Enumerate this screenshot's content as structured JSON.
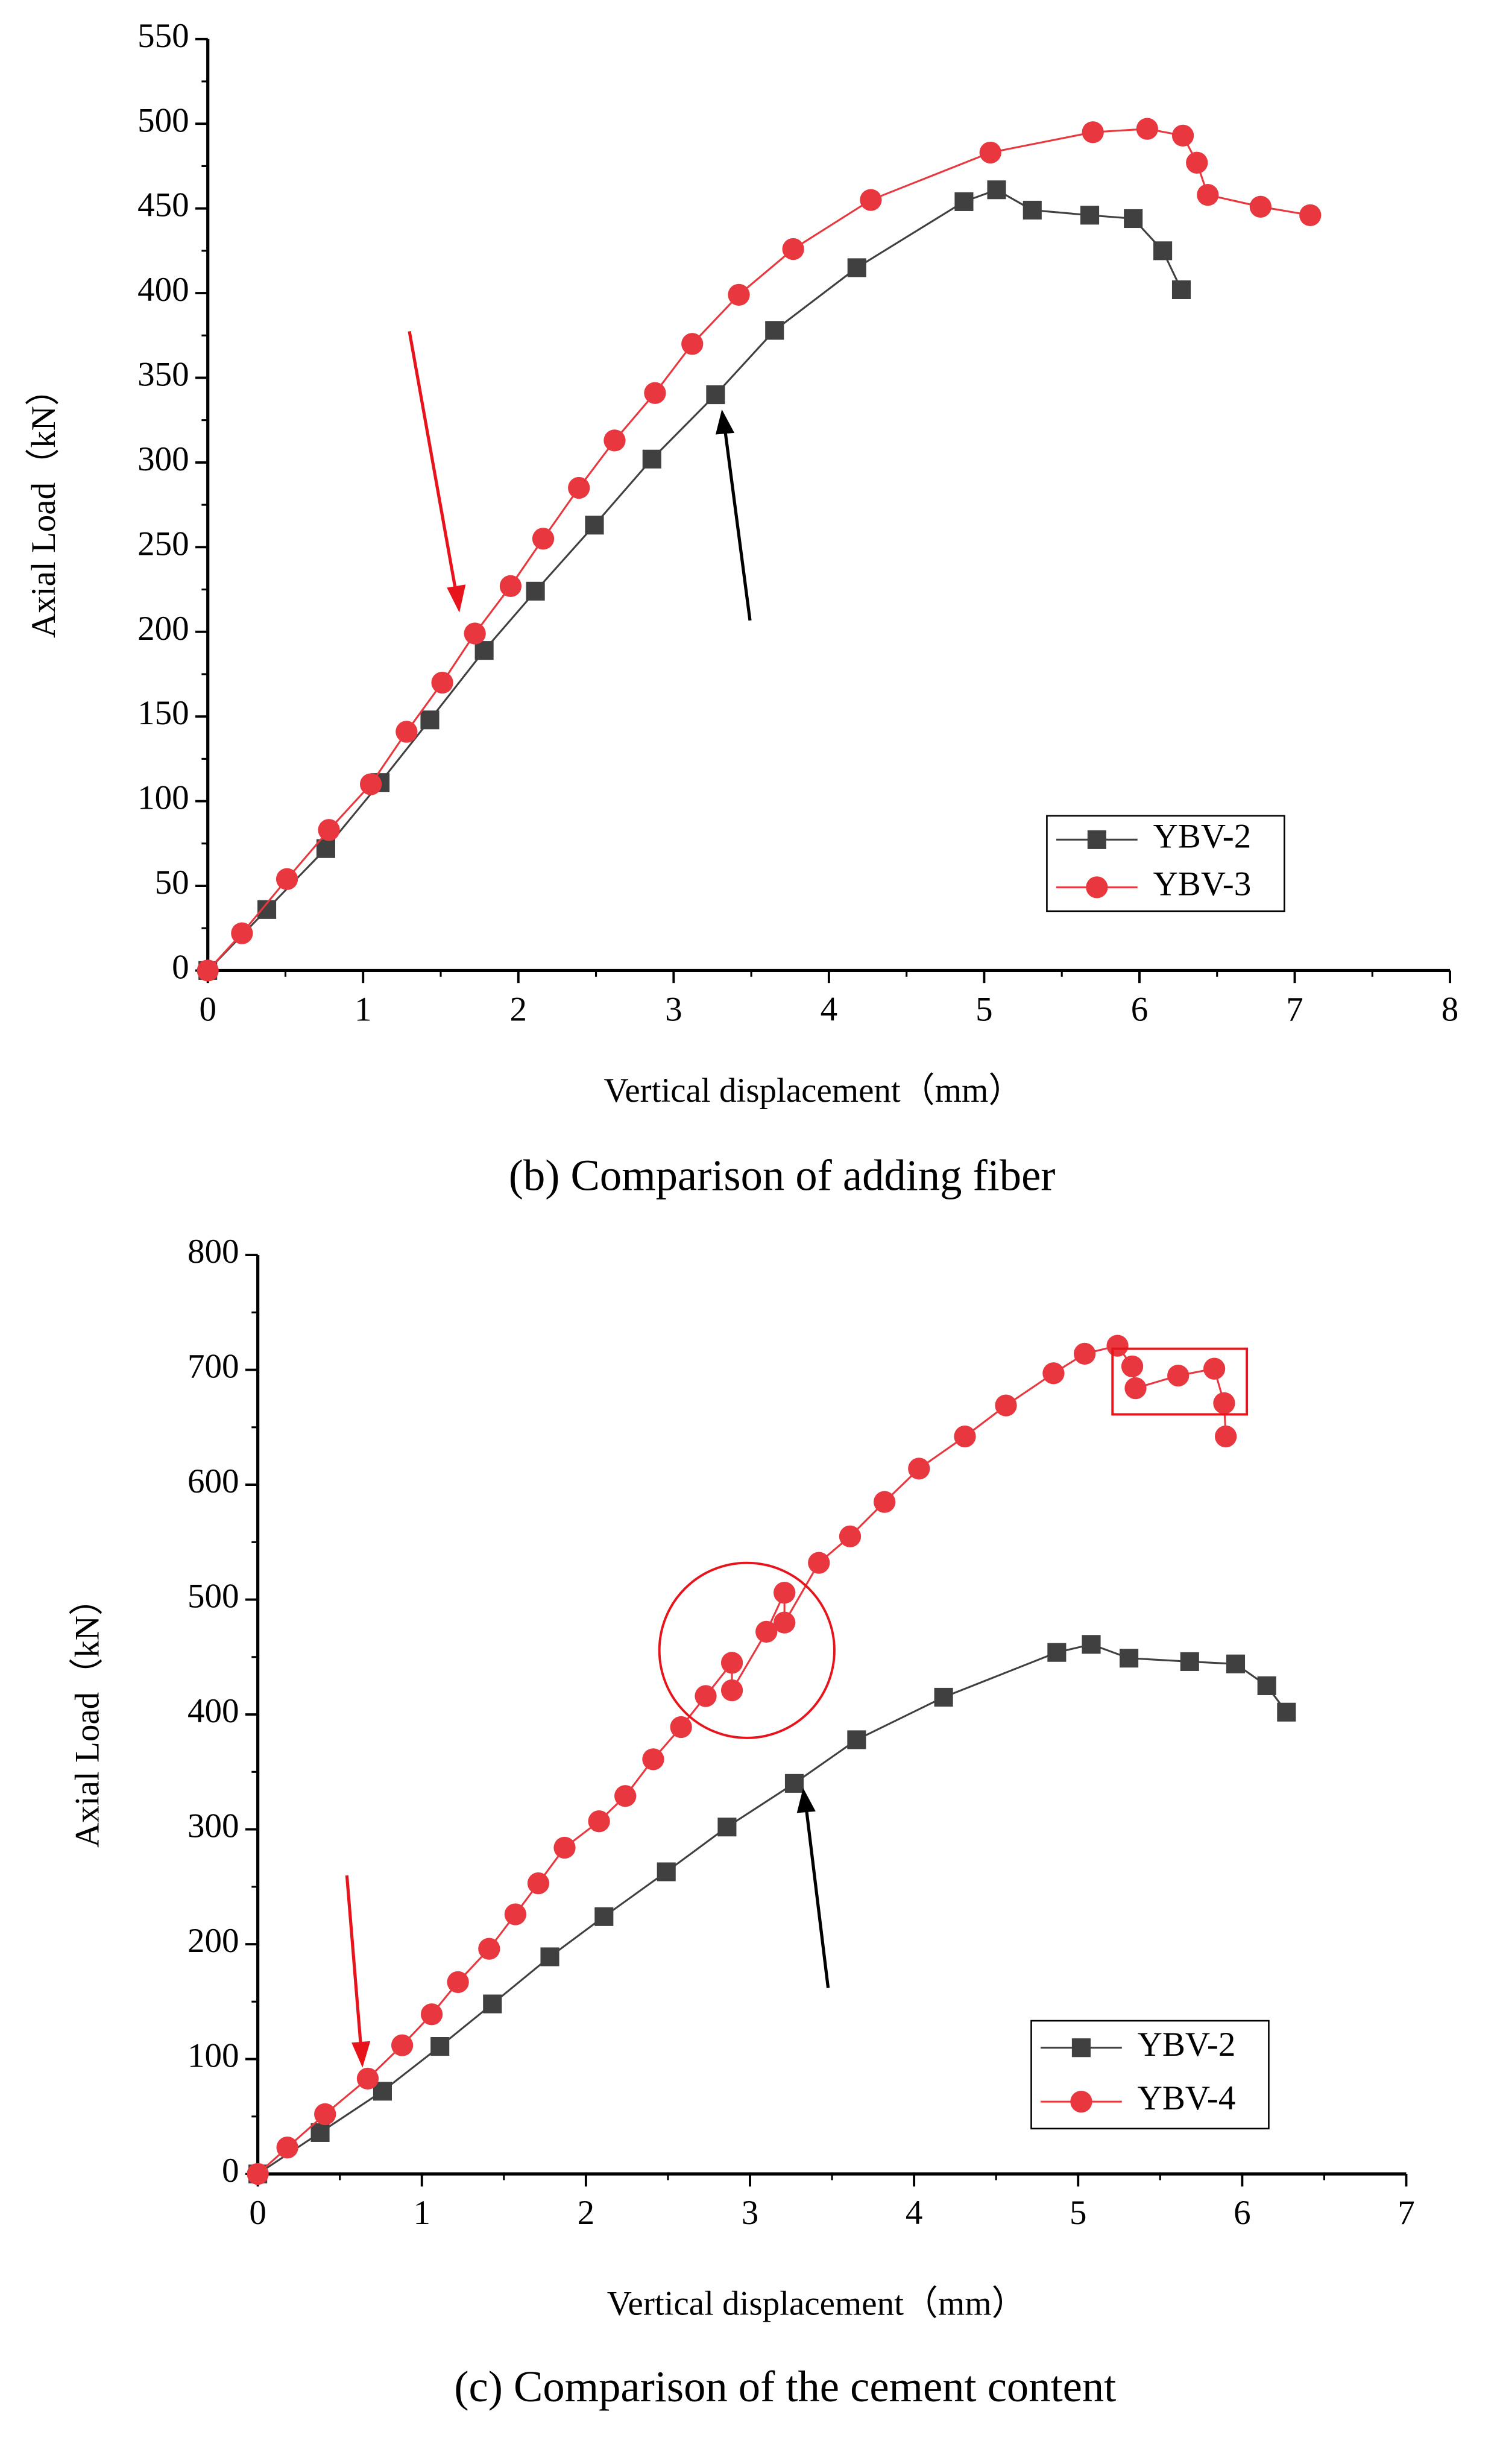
{
  "chart_data": [
    {
      "type": "line",
      "caption": "(b) Comparison of adding fiber",
      "xlabel": "Vertical displacement（mm）",
      "ylabel": "Axial Load（kN）",
      "xlim": [
        0,
        8
      ],
      "xticks": [
        0,
        1,
        2,
        3,
        4,
        5,
        6,
        7,
        8
      ],
      "ylim": [
        0,
        550
      ],
      "yticks": [
        0,
        50,
        100,
        150,
        200,
        250,
        300,
        350,
        400,
        450,
        500,
        550
      ],
      "legend": "lower right",
      "series": [
        {
          "name": "YBV-2",
          "color": "#404040",
          "marker": "square",
          "x": [
            0,
            0.38,
            0.76,
            1.11,
            1.43,
            1.78,
            2.11,
            2.49,
            2.86,
            3.27,
            3.65,
            4.18,
            4.87,
            5.08,
            5.31,
            5.68,
            5.96,
            6.15,
            6.27
          ],
          "values": [
            0,
            36,
            72,
            111,
            148,
            189,
            224,
            263,
            302,
            340,
            378,
            415,
            454,
            461,
            449,
            446,
            444,
            425,
            402
          ]
        },
        {
          "name": "YBV-3",
          "color": "#e8373f",
          "marker": "circle",
          "x": [
            0,
            0.22,
            0.51,
            0.78,
            1.05,
            1.28,
            1.51,
            1.72,
            1.95,
            2.16,
            2.39,
            2.62,
            2.88,
            3.12,
            3.42,
            3.77,
            4.27,
            5.04,
            5.7,
            6.05,
            6.28,
            6.37,
            6.44,
            6.78,
            7.1
          ],
          "values": [
            0,
            22,
            54,
            83,
            110,
            141,
            170,
            199,
            227,
            255,
            285,
            313,
            341,
            370,
            399,
            426,
            455,
            483,
            495,
            497,
            493,
            477,
            458,
            451,
            446
          ]
        }
      ]
    },
    {
      "type": "line",
      "caption": "(c) Comparison of the cement content",
      "xlabel": "Vertical displacement（mm）",
      "ylabel": "Axial Load（kN）",
      "xlim": [
        0,
        7
      ],
      "xticks": [
        0,
        1,
        2,
        3,
        4,
        5,
        6,
        7
      ],
      "ylim": [
        0,
        800
      ],
      "yticks": [
        0,
        100,
        200,
        300,
        400,
        500,
        600,
        700,
        800
      ],
      "legend": "lower right",
      "series": [
        {
          "name": "YBV-2",
          "color": "#404040",
          "marker": "square",
          "x": [
            0,
            0.38,
            0.76,
            1.11,
            1.43,
            1.78,
            2.11,
            2.49,
            2.86,
            3.27,
            3.65,
            4.18,
            4.87,
            5.08,
            5.31,
            5.68,
            5.96,
            6.15,
            6.27
          ],
          "values": [
            0,
            36,
            72,
            111,
            148,
            189,
            224,
            263,
            302,
            340,
            378,
            415,
            454,
            461,
            449,
            446,
            444,
            425,
            402
          ]
        },
        {
          "name": "YBV-4",
          "color": "#e8373f",
          "marker": "circle",
          "x": [
            0,
            0.18,
            0.41,
            0.67,
            0.88,
            1.06,
            1.22,
            1.41,
            1.57,
            1.71,
            1.87,
            2.08,
            2.24,
            2.41,
            2.58,
            2.73,
            2.89,
            2.89,
            3.1,
            3.21,
            3.21,
            3.42,
            3.61,
            3.82,
            4.03,
            4.31,
            4.56,
            4.85,
            5.04,
            5.24,
            5.33,
            5.35,
            5.61,
            5.83,
            5.89,
            5.9
          ],
          "values": [
            0,
            23,
            52,
            83,
            112,
            139,
            167,
            196,
            226,
            253,
            284,
            307,
            329,
            361,
            389,
            416,
            445,
            421,
            472,
            506,
            480,
            532,
            555,
            585,
            614,
            642,
            669,
            697,
            714,
            721,
            703,
            684,
            695,
            701,
            671,
            642
          ]
        }
      ]
    }
  ]
}
